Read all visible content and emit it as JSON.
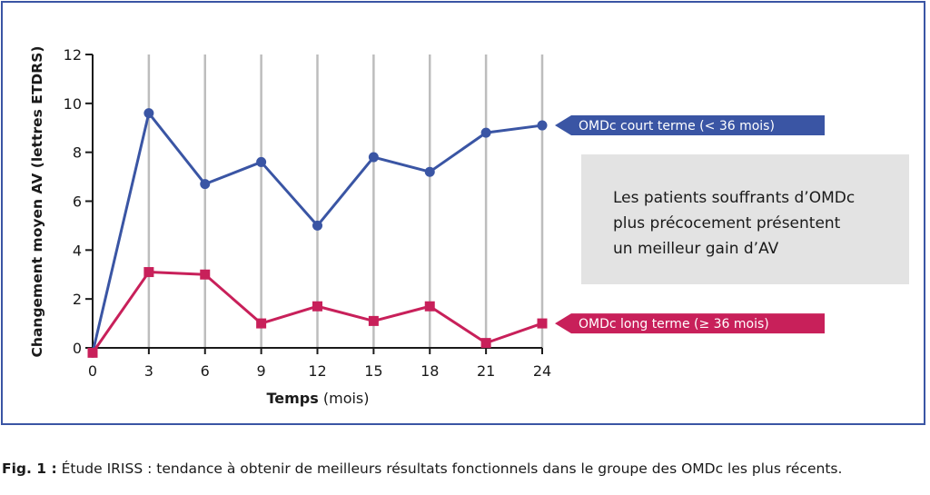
{
  "chart_data": {
    "type": "line",
    "x": [
      0,
      3,
      6,
      9,
      12,
      15,
      18,
      21,
      24
    ],
    "series": [
      {
        "name": "OMDc court terme (< 36 mois)",
        "color": "#3a55a4",
        "values": [
          -0.2,
          9.6,
          6.7,
          7.6,
          5.0,
          7.8,
          7.2,
          8.8,
          9.1
        ]
      },
      {
        "name": "OMDc long terme (≥ 36 mois)",
        "color": "#c8205a",
        "values": [
          -0.2,
          3.1,
          3.0,
          1.0,
          1.7,
          1.1,
          1.7,
          0.2,
          1.0
        ]
      }
    ],
    "xlabel_bold": "Temps",
    "xlabel_rest": " (mois)",
    "ylabel": "Changement moyen AV (lettres  ETDRS)",
    "xticks": [
      0,
      3,
      6,
      9,
      12,
      15,
      18,
      21,
      24
    ],
    "yticks": [
      0,
      2,
      4,
      6,
      8,
      10,
      12
    ],
    "ylim": [
      0,
      12
    ],
    "xlim": [
      0,
      24
    ],
    "grid": "vertical",
    "legend": "right, arrow labels"
  },
  "annotation": {
    "lines": [
      "Les patients souffrants d’OMDc",
      "plus précocement présentent",
      "un meilleur gain d’AV"
    ]
  },
  "caption": {
    "label": "Fig. 1 :",
    "text": " Étude IRISS : tendance à obtenir de meilleurs résultats fonctionnels dans le groupe des OMDc les plus récents."
  },
  "colors": {
    "frame": "#3a55a4",
    "grid": "#bdbdbd",
    "axis": "#1a1a1a",
    "box": "#e3e3e3"
  }
}
